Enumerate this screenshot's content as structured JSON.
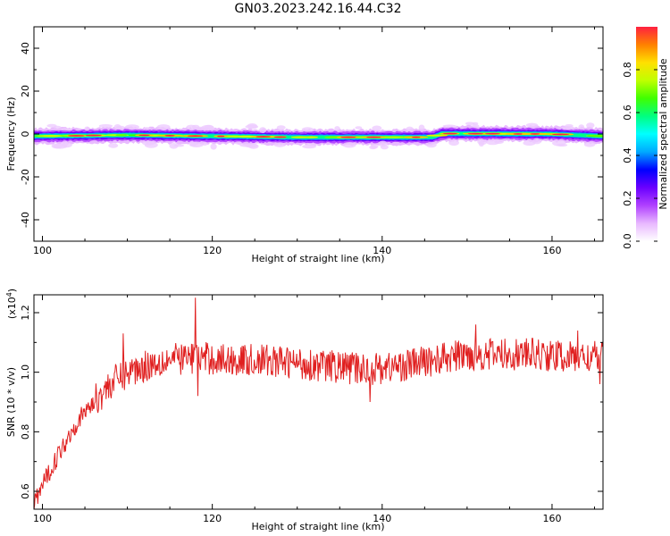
{
  "title": "GN03.2023.242.16.44.C32",
  "colors": {
    "snr_line": "#e02020",
    "frame": "#000000",
    "colormap": [
      "#ffffff",
      "#e8b8ff",
      "#b040ff",
      "#6a00ff",
      "#0000ff",
      "#00aaff",
      "#00ffff",
      "#00ff80",
      "#40ff00",
      "#c0ff00",
      "#ffe000",
      "#ff8000",
      "#ff2040"
    ]
  },
  "chart_data": [
    {
      "type": "heatmap",
      "name": "spectrogram",
      "xlabel": "Height of straight line (km)",
      "ylabel": "Frequency (Hz)",
      "xlim": [
        99,
        166
      ],
      "ylim": [
        -50,
        50
      ],
      "x_ticks": [
        100,
        120,
        140,
        160
      ],
      "x_tick_labels": [
        "100",
        "120",
        "140",
        "160"
      ],
      "y_ticks": [
        40,
        20,
        0,
        -20,
        -40
      ],
      "y_tick_labels": [
        "40",
        "20",
        "0",
        "-20",
        "-40"
      ],
      "band_center_hz": [
        [
          99,
          -1.0
        ],
        [
          110,
          -0.5
        ],
        [
          130,
          -1.5
        ],
        [
          138,
          -1.5
        ],
        [
          146,
          -1.5
        ],
        [
          147,
          0.2
        ],
        [
          160,
          0
        ],
        [
          166,
          -1.0
        ]
      ],
      "hot_spots_km": [
        104,
        106,
        112,
        115,
        118,
        121,
        126,
        128,
        136,
        139,
        144,
        148,
        151,
        153,
        156,
        158,
        161
      ],
      "colorbar": {
        "label": "Normalized spectral amplitude",
        "range": [
          0,
          1
        ],
        "ticks": [
          0.0,
          0.2,
          0.4,
          0.6,
          0.8
        ],
        "tick_labels": [
          "0.0",
          "0.2",
          "0.4",
          "0.6",
          "0.8"
        ]
      }
    },
    {
      "type": "line",
      "name": "snr",
      "xlabel": "Height of straight line (km)",
      "ylabel": "SNR (10 * v/v)",
      "y_multiplier_label": "(x10",
      "y_multiplier_exponent": "4",
      "y_multiplier_close": ")",
      "xlim": [
        99,
        166
      ],
      "ylim": [
        0.54,
        1.26
      ],
      "x_ticks": [
        100,
        120,
        140,
        160
      ],
      "x_tick_labels": [
        "100",
        "120",
        "140",
        "160"
      ],
      "y_ticks": [
        0.6,
        0.8,
        1.0,
        1.2
      ],
      "y_tick_labels": [
        "0.6",
        "0.8",
        "1.0",
        "1.2"
      ],
      "series": [
        {
          "trend_x": [
            99,
            100,
            102,
            104,
            106,
            108,
            110,
            114,
            118,
            122,
            126,
            130,
            134,
            138,
            142,
            146,
            150,
            154,
            158,
            162,
            166
          ],
          "trend_y": [
            0.56,
            0.62,
            0.73,
            0.83,
            0.9,
            0.96,
            1.0,
            1.04,
            1.05,
            1.04,
            1.04,
            1.03,
            1.02,
            1.01,
            1.02,
            1.04,
            1.06,
            1.06,
            1.06,
            1.05,
            1.05
          ],
          "spikes": [
            [
              118.0,
              1.25
            ],
            [
              151.0,
              1.16
            ],
            [
              109.5,
              1.13
            ],
            [
              118.3,
              0.92
            ],
            [
              163.0,
              1.14
            ],
            [
              165.6,
              0.96
            ],
            [
              138.6,
              0.9
            ]
          ],
          "noise_amplitude": 0.055,
          "points": 900
        }
      ]
    }
  ]
}
